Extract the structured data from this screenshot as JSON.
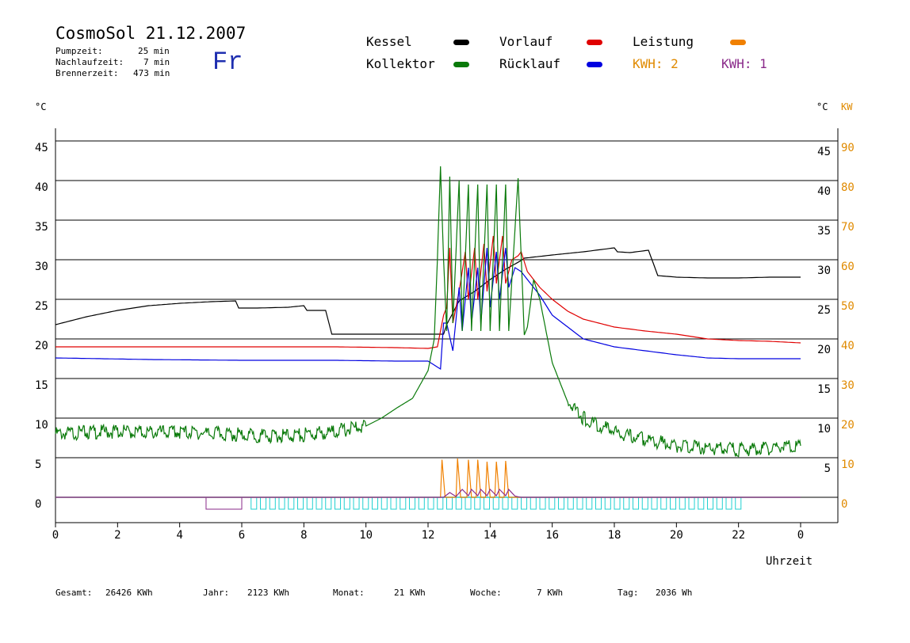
{
  "header": {
    "title": "CosmoSol 21.12.2007",
    "weekday": "Fr",
    "stats": [
      {
        "label": "Pumpzeit:",
        "value": "25 min"
      },
      {
        "label": "Nachlaufzeit:",
        "value": "7 min"
      },
      {
        "label": "Brennerzeit:",
        "value": "473 min"
      }
    ]
  },
  "legend": [
    {
      "label": "Kessel",
      "color": "#000000"
    },
    {
      "label": "Kollektor",
      "color": "#0a7a0a"
    },
    {
      "label": "Vorlauf",
      "color": "#e00000"
    },
    {
      "label": "Rücklauf",
      "color": "#0000e0"
    },
    {
      "label": "Leistung",
      "color": "#f08000"
    }
  ],
  "kwh": [
    {
      "label": "KWH: 2",
      "color": "#e08a00"
    },
    {
      "label": "KWH: 1",
      "color": "#8a2a8a"
    }
  ],
  "axes": {
    "left_unit": "°C",
    "right_unit": "°C",
    "right_unit2": "KW",
    "x_title": "Uhrzeit"
  },
  "footer": [
    {
      "label": "Gesamt:",
      "value": "26426 KWh"
    },
    {
      "label": "Jahr:",
      "value": "2123 KWh"
    },
    {
      "label": "Monat:",
      "value": "21 KWh"
    },
    {
      "label": "Woche:",
      "value": "7 KWh"
    },
    {
      "label": "Tag:",
      "value": "2036 Wh"
    }
  ],
  "chart_data": {
    "type": "line",
    "xlabel": "Uhrzeit",
    "ylabel": "°C",
    "xlim": [
      0,
      24
    ],
    "ylim": [
      0,
      45
    ],
    "y2lim": [
      0,
      90
    ],
    "y2label": "KW",
    "grid": true,
    "x_ticks": [
      "0",
      "2",
      "4",
      "6",
      "8",
      "10",
      "12",
      "14",
      "16",
      "18",
      "20",
      "22",
      "0"
    ],
    "y_ticks": [
      "0",
      "5",
      "10",
      "15",
      "20",
      "25",
      "30",
      "35",
      "40",
      "45"
    ],
    "y_ticks_right": [
      "5",
      "10",
      "15",
      "20",
      "25",
      "30",
      "35",
      "40",
      "45"
    ],
    "y2_ticks": [
      "0",
      "10",
      "20",
      "30",
      "40",
      "50",
      "60",
      "70",
      "80",
      "90"
    ],
    "series": [
      {
        "name": "Kessel",
        "color": "#000000",
        "points": [
          [
            0,
            21.8
          ],
          [
            1,
            22.8
          ],
          [
            2,
            23.6
          ],
          [
            3,
            24.2
          ],
          [
            4,
            24.5
          ],
          [
            5,
            24.7
          ],
          [
            5.8,
            24.8
          ],
          [
            5.9,
            23.9
          ],
          [
            6.5,
            23.9
          ],
          [
            7.5,
            24.0
          ],
          [
            8,
            24.2
          ],
          [
            8.1,
            23.6
          ],
          [
            8.7,
            23.6
          ],
          [
            8.9,
            20.6
          ],
          [
            10,
            20.6
          ],
          [
            11,
            20.6
          ],
          [
            12,
            20.6
          ],
          [
            12.5,
            20.6
          ],
          [
            12.6,
            21.8
          ],
          [
            13,
            24.8
          ],
          [
            13.5,
            26.0
          ],
          [
            14,
            27.5
          ],
          [
            14.5,
            28.8
          ],
          [
            15,
            29.9
          ],
          [
            15.1,
            30.2
          ],
          [
            16,
            30.6
          ],
          [
            17,
            31.0
          ],
          [
            18,
            31.5
          ],
          [
            18.1,
            31.0
          ],
          [
            18.5,
            30.9
          ],
          [
            19.1,
            31.2
          ],
          [
            19.4,
            28.0
          ],
          [
            20,
            27.8
          ],
          [
            21,
            27.7
          ],
          [
            22,
            27.7
          ],
          [
            23,
            27.8
          ],
          [
            24,
            27.8
          ]
        ]
      },
      {
        "name": "Vorlauf",
        "color": "#e00000",
        "points": [
          [
            0,
            19.0
          ],
          [
            3,
            19.0
          ],
          [
            6,
            19.0
          ],
          [
            9,
            19.0
          ],
          [
            11,
            18.9
          ],
          [
            12,
            18.8
          ],
          [
            12.3,
            19.0
          ],
          [
            12.5,
            23.0
          ],
          [
            12.6,
            24.0
          ],
          [
            12.7,
            31.5
          ],
          [
            12.8,
            22.0
          ],
          [
            13,
            26.0
          ],
          [
            13.2,
            31.0
          ],
          [
            13.3,
            25.0
          ],
          [
            13.5,
            31.5
          ],
          [
            13.6,
            25.0
          ],
          [
            13.8,
            32.0
          ],
          [
            13.9,
            26.0
          ],
          [
            14.1,
            33.0
          ],
          [
            14.2,
            27.0
          ],
          [
            14.4,
            33.0
          ],
          [
            14.5,
            27.0
          ],
          [
            14.7,
            30.0
          ],
          [
            14.9,
            30.5
          ],
          [
            15.0,
            31.0
          ],
          [
            15.2,
            28.5
          ],
          [
            15.6,
            26.5
          ],
          [
            16,
            25.0
          ],
          [
            16.5,
            23.5
          ],
          [
            17,
            22.5
          ],
          [
            18,
            21.5
          ],
          [
            19,
            21.0
          ],
          [
            20,
            20.6
          ],
          [
            21,
            20.0
          ],
          [
            22,
            19.8
          ],
          [
            23,
            19.7
          ],
          [
            24,
            19.5
          ]
        ]
      },
      {
        "name": "Rücklauf",
        "color": "#0000e0",
        "points": [
          [
            0,
            17.6
          ],
          [
            3,
            17.4
          ],
          [
            6,
            17.3
          ],
          [
            9,
            17.3
          ],
          [
            11,
            17.2
          ],
          [
            12,
            17.2
          ],
          [
            12.4,
            16.2
          ],
          [
            12.5,
            22.0
          ],
          [
            12.6,
            22.0
          ],
          [
            12.8,
            18.5
          ],
          [
            13,
            26.5
          ],
          [
            13.1,
            21.0
          ],
          [
            13.3,
            29.0
          ],
          [
            13.4,
            22.0
          ],
          [
            13.6,
            29.0
          ],
          [
            13.7,
            22.0
          ],
          [
            13.9,
            31.5
          ],
          [
            14.0,
            24.0
          ],
          [
            14.2,
            31.0
          ],
          [
            14.3,
            25.0
          ],
          [
            14.5,
            31.5
          ],
          [
            14.6,
            26.5
          ],
          [
            14.8,
            29.0
          ],
          [
            15.0,
            28.5
          ],
          [
            15.2,
            27.5
          ],
          [
            15.6,
            25.5
          ],
          [
            16,
            23.0
          ],
          [
            16.5,
            21.5
          ],
          [
            17,
            20.0
          ],
          [
            18,
            19.0
          ],
          [
            19,
            18.5
          ],
          [
            20,
            18.0
          ],
          [
            21,
            17.6
          ],
          [
            22,
            17.5
          ],
          [
            23,
            17.5
          ],
          [
            24,
            17.5
          ]
        ]
      },
      {
        "name": "Kollektor",
        "color": "#0a7a0a",
        "points": [
          [
            0,
            8.0
          ],
          [
            1,
            8.2
          ],
          [
            2,
            8.3
          ],
          [
            3,
            8.2
          ],
          [
            4,
            8.2
          ],
          [
            5,
            8.1
          ],
          [
            6,
            7.9
          ],
          [
            7,
            7.7
          ],
          [
            8,
            7.9
          ],
          [
            9,
            8.3
          ],
          [
            10,
            9.0
          ],
          [
            10.5,
            10.0
          ],
          [
            11,
            11.3
          ],
          [
            11.5,
            12.5
          ],
          [
            12,
            16.0
          ],
          [
            12.2,
            20.0
          ],
          [
            12.3,
            30.0
          ],
          [
            12.4,
            41.8
          ],
          [
            12.5,
            30.0
          ],
          [
            12.6,
            21.0
          ],
          [
            12.7,
            40.5
          ],
          [
            12.8,
            22.0
          ],
          [
            13.0,
            40.0
          ],
          [
            13.1,
            21.0
          ],
          [
            13.3,
            39.5
          ],
          [
            13.4,
            21.0
          ],
          [
            13.6,
            39.5
          ],
          [
            13.7,
            21.0
          ],
          [
            13.9,
            39.5
          ],
          [
            14.0,
            21.0
          ],
          [
            14.2,
            39.5
          ],
          [
            14.3,
            21.0
          ],
          [
            14.5,
            39.5
          ],
          [
            14.6,
            21.0
          ],
          [
            14.9,
            40.3
          ],
          [
            15.1,
            20.5
          ],
          [
            15.2,
            21.5
          ],
          [
            15.4,
            27.5
          ],
          [
            15.6,
            25.0
          ],
          [
            16,
            17.0
          ],
          [
            16.5,
            12.0
          ],
          [
            17,
            10.0
          ],
          [
            18,
            8.3
          ],
          [
            19,
            7.3
          ],
          [
            20,
            6.5
          ],
          [
            21,
            6.2
          ],
          [
            22,
            6.0
          ],
          [
            23,
            6.2
          ],
          [
            24,
            6.5
          ]
        ]
      },
      {
        "name": "Leistung",
        "color": "#f08000",
        "axis": "y2",
        "points": [
          [
            0,
            0
          ],
          [
            12.4,
            0
          ],
          [
            12.45,
            9.5
          ],
          [
            12.55,
            0
          ],
          [
            12.9,
            0
          ],
          [
            12.95,
            9.8
          ],
          [
            13.05,
            0
          ],
          [
            13.25,
            0
          ],
          [
            13.3,
            9.5
          ],
          [
            13.4,
            0
          ],
          [
            13.55,
            0
          ],
          [
            13.6,
            9.5
          ],
          [
            13.7,
            0
          ],
          [
            13.85,
            0
          ],
          [
            13.9,
            9.0
          ],
          [
            14.0,
            0
          ],
          [
            14.15,
            0
          ],
          [
            14.2,
            9.0
          ],
          [
            14.3,
            0
          ],
          [
            14.45,
            0
          ],
          [
            14.5,
            9.2
          ],
          [
            14.6,
            0
          ],
          [
            15,
            0
          ],
          [
            24,
            0
          ]
        ]
      },
      {
        "name": "KWH: 1",
        "color": "#8a2a8a",
        "axis": "y2",
        "points": [
          [
            0,
            0
          ],
          [
            12.5,
            0
          ],
          [
            12.7,
            1.2
          ],
          [
            12.9,
            0.2
          ],
          [
            13.1,
            2.0
          ],
          [
            13.3,
            0.4
          ],
          [
            13.4,
            2.0
          ],
          [
            13.6,
            0.4
          ],
          [
            13.7,
            2.0
          ],
          [
            13.9,
            0.4
          ],
          [
            14.0,
            2.0
          ],
          [
            14.2,
            0.4
          ],
          [
            14.3,
            2.0
          ],
          [
            14.5,
            0.4
          ],
          [
            14.6,
            2.0
          ],
          [
            14.8,
            0.3
          ],
          [
            15,
            0
          ],
          [
            24,
            0
          ]
        ]
      }
    ]
  }
}
